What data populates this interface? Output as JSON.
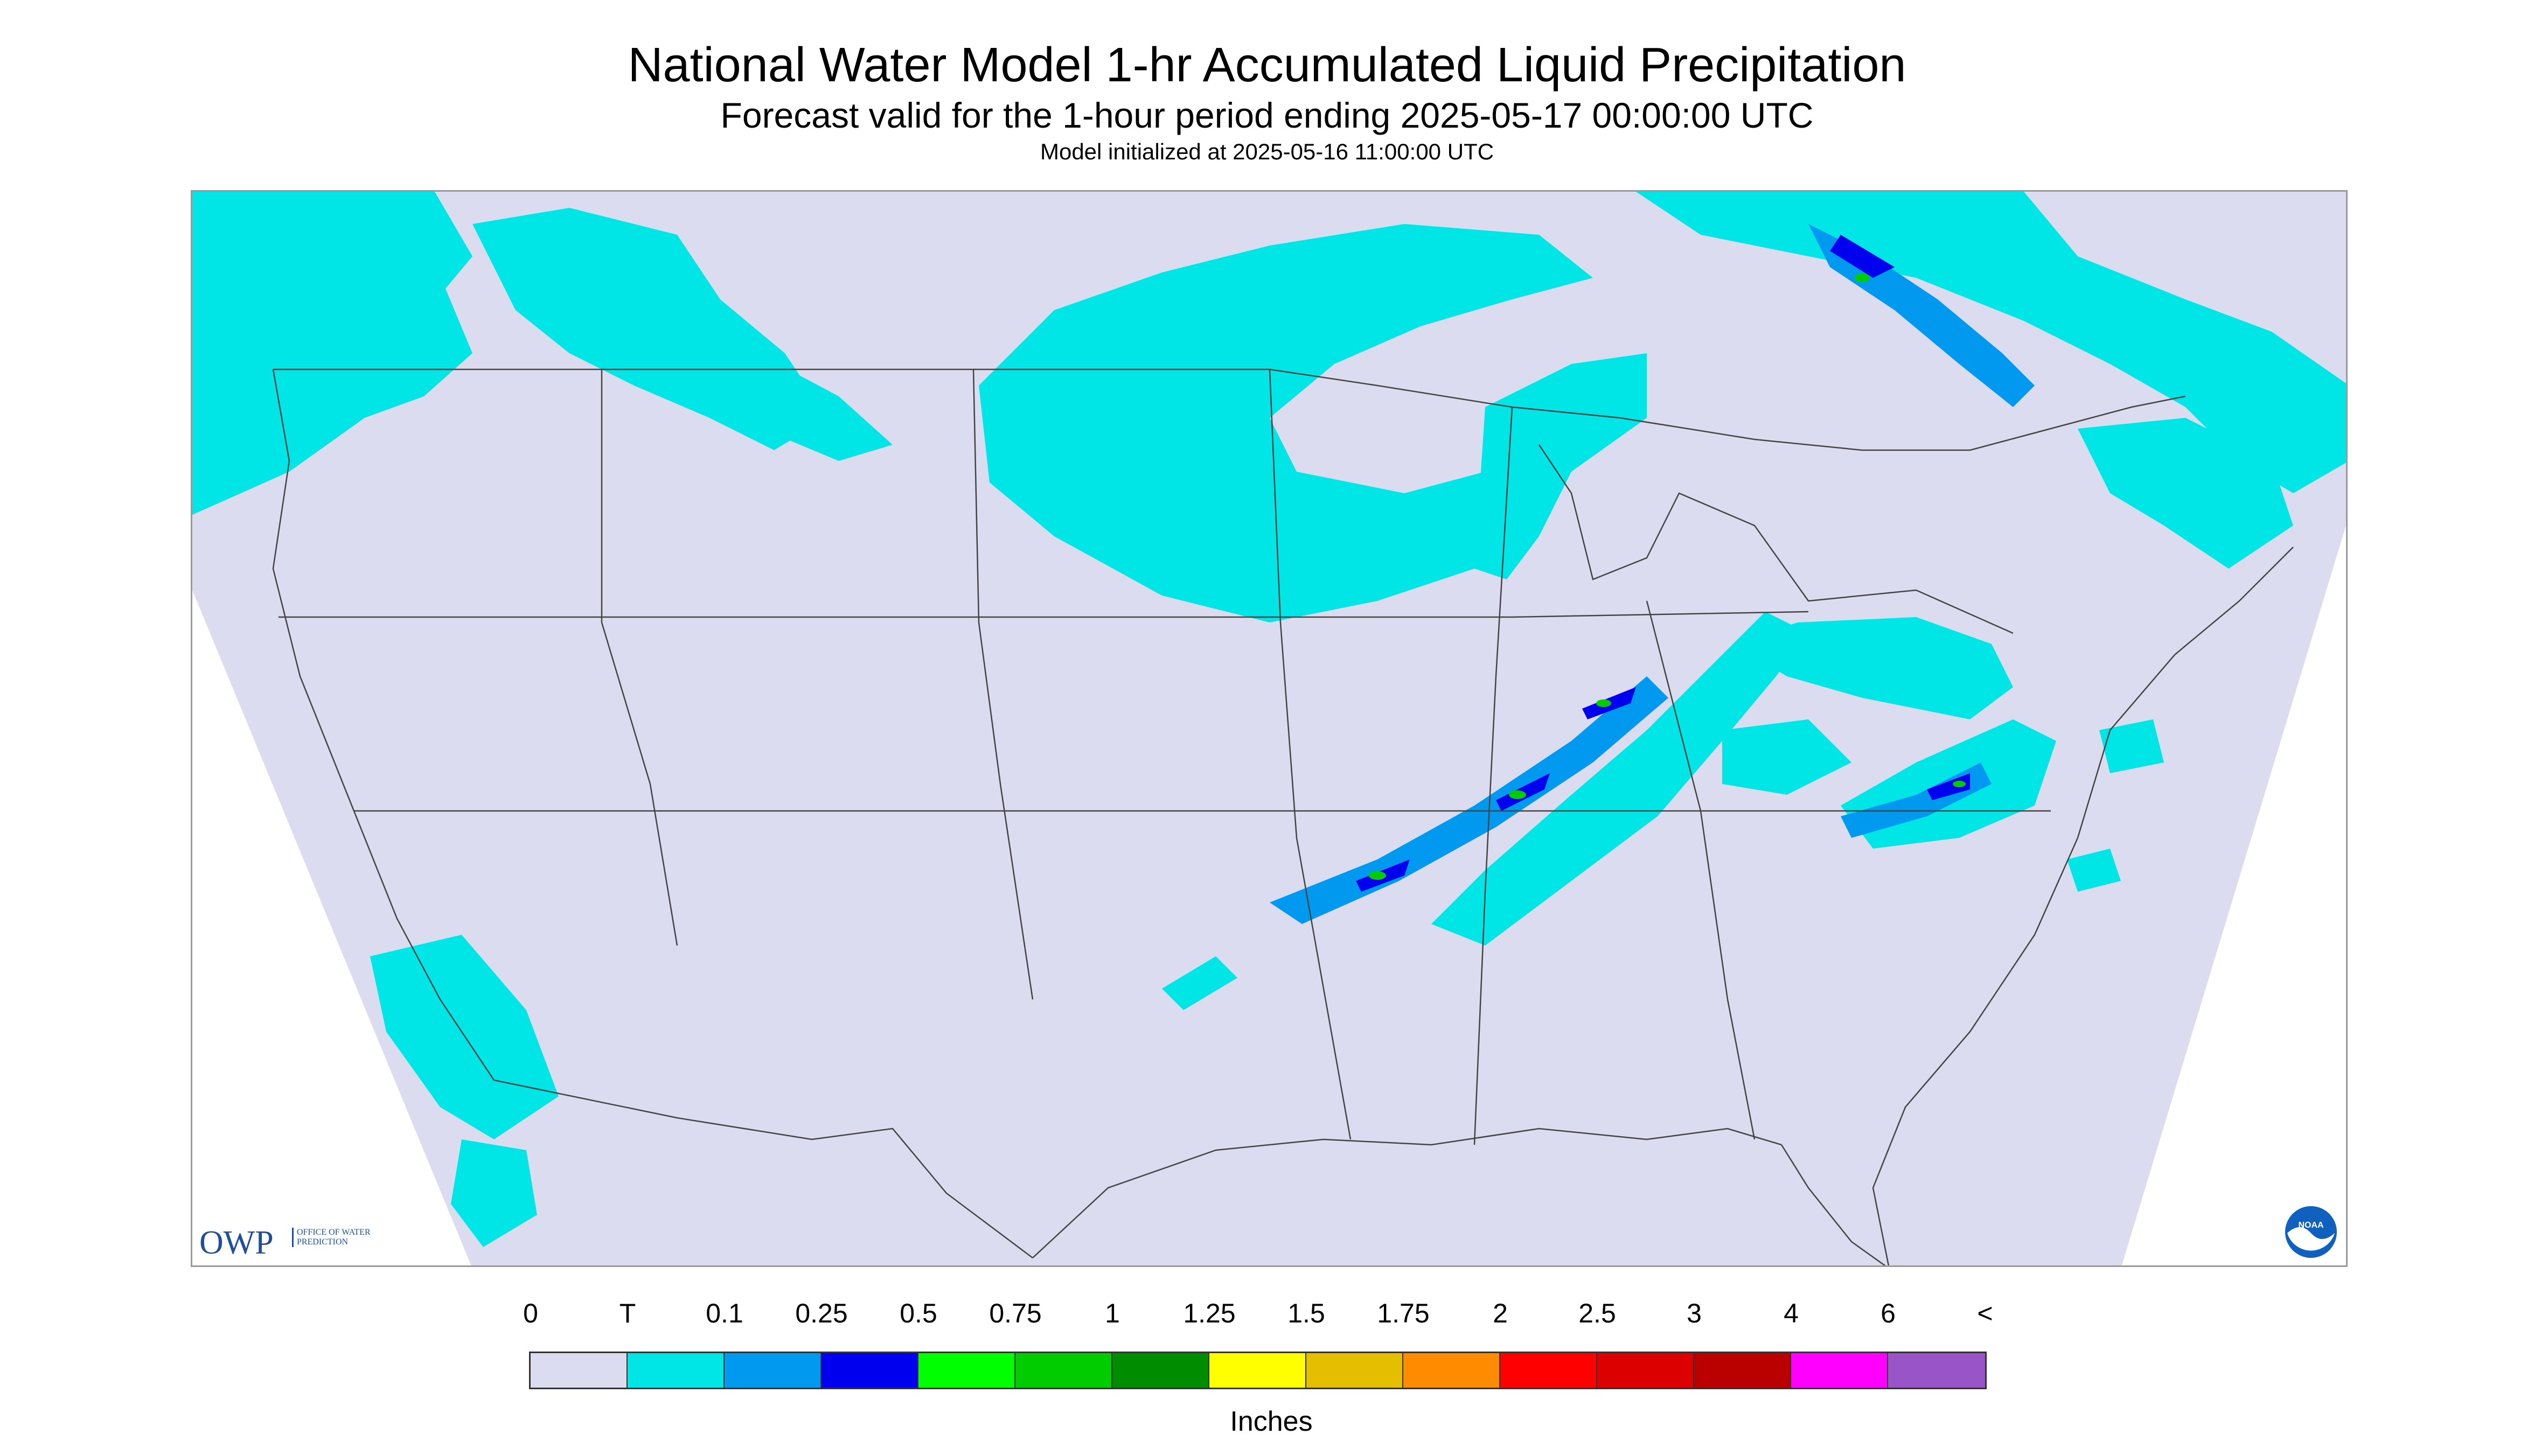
{
  "header": {
    "title": "National Water Model 1-hr Accumulated Liquid Precipitation",
    "subtitle": "Forecast valid for the 1-hour period ending 2025-05-17 00:00:00 UTC",
    "init": "Model initialized at 2025-05-16 11:00:00 UTC"
  },
  "logos": {
    "owp_text": "OWP",
    "owp_sub": "OFFICE OF WATER PREDICTION",
    "noaa_text": "NOAA"
  },
  "legend": {
    "labels": [
      "0",
      "T",
      "0.1",
      "0.25",
      "0.5",
      "0.75",
      "1",
      "1.25",
      "1.5",
      "1.75",
      "2",
      "2.5",
      "3",
      "4",
      "6",
      "<"
    ],
    "colors": [
      "#dcdcf0",
      "#00e6e6",
      "#0099f0",
      "#0000ee",
      "#00ff00",
      "#00cc00",
      "#008c00",
      "#ffff00",
      "#e6be00",
      "#ff8c00",
      "#ff0000",
      "#dd0000",
      "#bb0000",
      "#ff00ff",
      "#9955c8"
    ],
    "unit": "Inches"
  },
  "colors": {
    "domain_fill": "#dcdcf0",
    "trace_precip": "#00e6e6",
    "heavy_core": "#0000ee",
    "moderate": "#0099f0",
    "peak": "#00cc00",
    "state_lines": "#444444"
  }
}
